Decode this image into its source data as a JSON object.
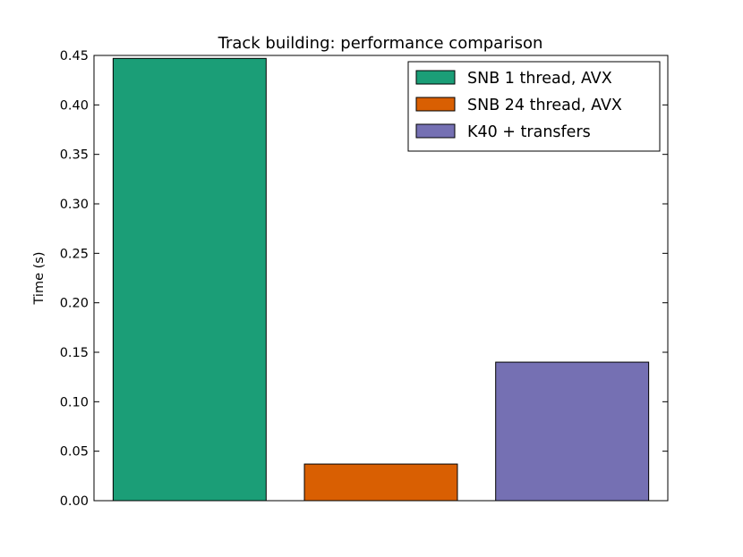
{
  "chart_data": {
    "type": "bar",
    "title": "Track building: performance comparison",
    "xlabel": "",
    "ylabel": "Time (s)",
    "ylim": [
      0,
      0.45
    ],
    "yticks": [
      "0.00",
      "0.05",
      "0.10",
      "0.15",
      "0.20",
      "0.25",
      "0.30",
      "0.35",
      "0.40",
      "0.45"
    ],
    "grid": false,
    "legend_position": "top-right",
    "series": [
      {
        "name": "SNB 1 thread, AVX",
        "value": 0.447,
        "color": "#1b9e77"
      },
      {
        "name": "SNB 24 thread, AVX",
        "value": 0.037,
        "color": "#d95f02"
      },
      {
        "name": "K40 + transfers",
        "value": 0.14,
        "color": "#7570b3"
      }
    ]
  }
}
